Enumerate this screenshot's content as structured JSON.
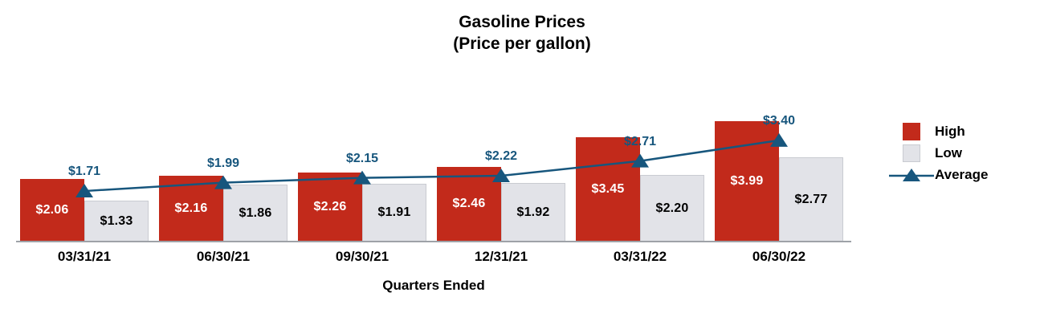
{
  "chart_data": {
    "type": "bar",
    "title": "Gasoline Prices",
    "subtitle": "(Price per gallon)",
    "xlabel": "Quarters Ended",
    "ylabel": "",
    "categories": [
      "03/31/21",
      "06/30/21",
      "09/30/21",
      "12/31/21",
      "03/31/22",
      "06/30/22"
    ],
    "series": [
      {
        "name": "High",
        "type": "bar",
        "values": [
          2.06,
          2.16,
          2.26,
          2.46,
          3.45,
          3.99
        ],
        "color": "#C22A1B"
      },
      {
        "name": "Low",
        "type": "bar",
        "values": [
          1.33,
          1.86,
          1.91,
          1.92,
          2.2,
          2.77
        ],
        "color": "#E2E3E8"
      },
      {
        "name": "Average",
        "type": "line",
        "values": [
          1.71,
          1.99,
          2.15,
          2.22,
          2.71,
          3.4
        ],
        "color": "#17567D"
      }
    ],
    "value_label_format": "$0.00",
    "ylim": [
      0,
      4.6
    ],
    "grid": false,
    "legend_position": "right"
  }
}
